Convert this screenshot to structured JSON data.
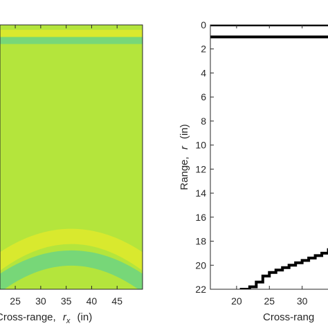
{
  "chart_data": [
    {
      "type": "heatmap",
      "xlabel_prefix": "Cross-range,",
      "xlabel_var": "r",
      "xlabel_sub": "x",
      "xlabel_unit": "(in)",
      "xlim": [
        22,
        50
      ],
      "ylim": [
        0,
        22
      ],
      "x_ticks": [
        {
          "value": 25,
          "label": "25"
        },
        {
          "value": 30,
          "label": "30"
        },
        {
          "value": 35,
          "label": "35"
        },
        {
          "value": 40,
          "label": "40"
        },
        {
          "value": 45,
          "label": "45"
        }
      ],
      "colors": {
        "base": "#b4e53c",
        "bright": "#e6ea2a",
        "dark": "#63d18c"
      },
      "bands": [
        {
          "y": 0.7,
          "kind": "bright",
          "curve": 0
        },
        {
          "y": 1.3,
          "kind": "dark",
          "curve": 0
        },
        {
          "y": 17.6,
          "kind": "bright",
          "curve": 2.5
        },
        {
          "y": 19.4,
          "kind": "dark",
          "curve": 2.5
        }
      ]
    },
    {
      "type": "line",
      "ylabel_prefix": "Range,",
      "ylabel_var": "r",
      "ylabel_unit": "(in)",
      "xlabel_visible": "Cross-rang",
      "xlim": [
        16,
        35
      ],
      "ylim": [
        0,
        22
      ],
      "y_reversed": true,
      "x_ticks": [
        {
          "value": 20,
          "label": "20"
        },
        {
          "value": 25,
          "label": "25"
        },
        {
          "value": 30,
          "label": "30"
        }
      ],
      "y_ticks": [
        {
          "value": 0,
          "label": "0"
        },
        {
          "value": 2,
          "label": "2"
        },
        {
          "value": 4,
          "label": "4"
        },
        {
          "value": 6,
          "label": "6"
        },
        {
          "value": 8,
          "label": "8"
        },
        {
          "value": 10,
          "label": "10"
        },
        {
          "value": 12,
          "label": "12"
        },
        {
          "value": 14,
          "label": "14"
        },
        {
          "value": 16,
          "label": "16"
        },
        {
          "value": 18,
          "label": "18"
        },
        {
          "value": 20,
          "label": "20"
        },
        {
          "value": 22,
          "label": "22"
        }
      ],
      "line_color": "#000000",
      "series": [
        {
          "values": [
            [
              16,
              0
            ],
            [
              35,
              0
            ]
          ]
        },
        {
          "values": [
            [
              16,
              1
            ],
            [
              35,
              1
            ]
          ]
        },
        {
          "values": [
            [
              20.5,
              22
            ],
            [
              22,
              21.8
            ],
            [
              23,
              21.4
            ],
            [
              24,
              20.9
            ],
            [
              25,
              20.6
            ],
            [
              26,
              20.4
            ],
            [
              27,
              20.2
            ],
            [
              28,
              20.0
            ],
            [
              29,
              19.8
            ],
            [
              30,
              19.6
            ],
            [
              31,
              19.4
            ],
            [
              32,
              19.2
            ],
            [
              33,
              19.0
            ],
            [
              34,
              18.7
            ],
            [
              35,
              18.3
            ]
          ]
        }
      ]
    }
  ]
}
